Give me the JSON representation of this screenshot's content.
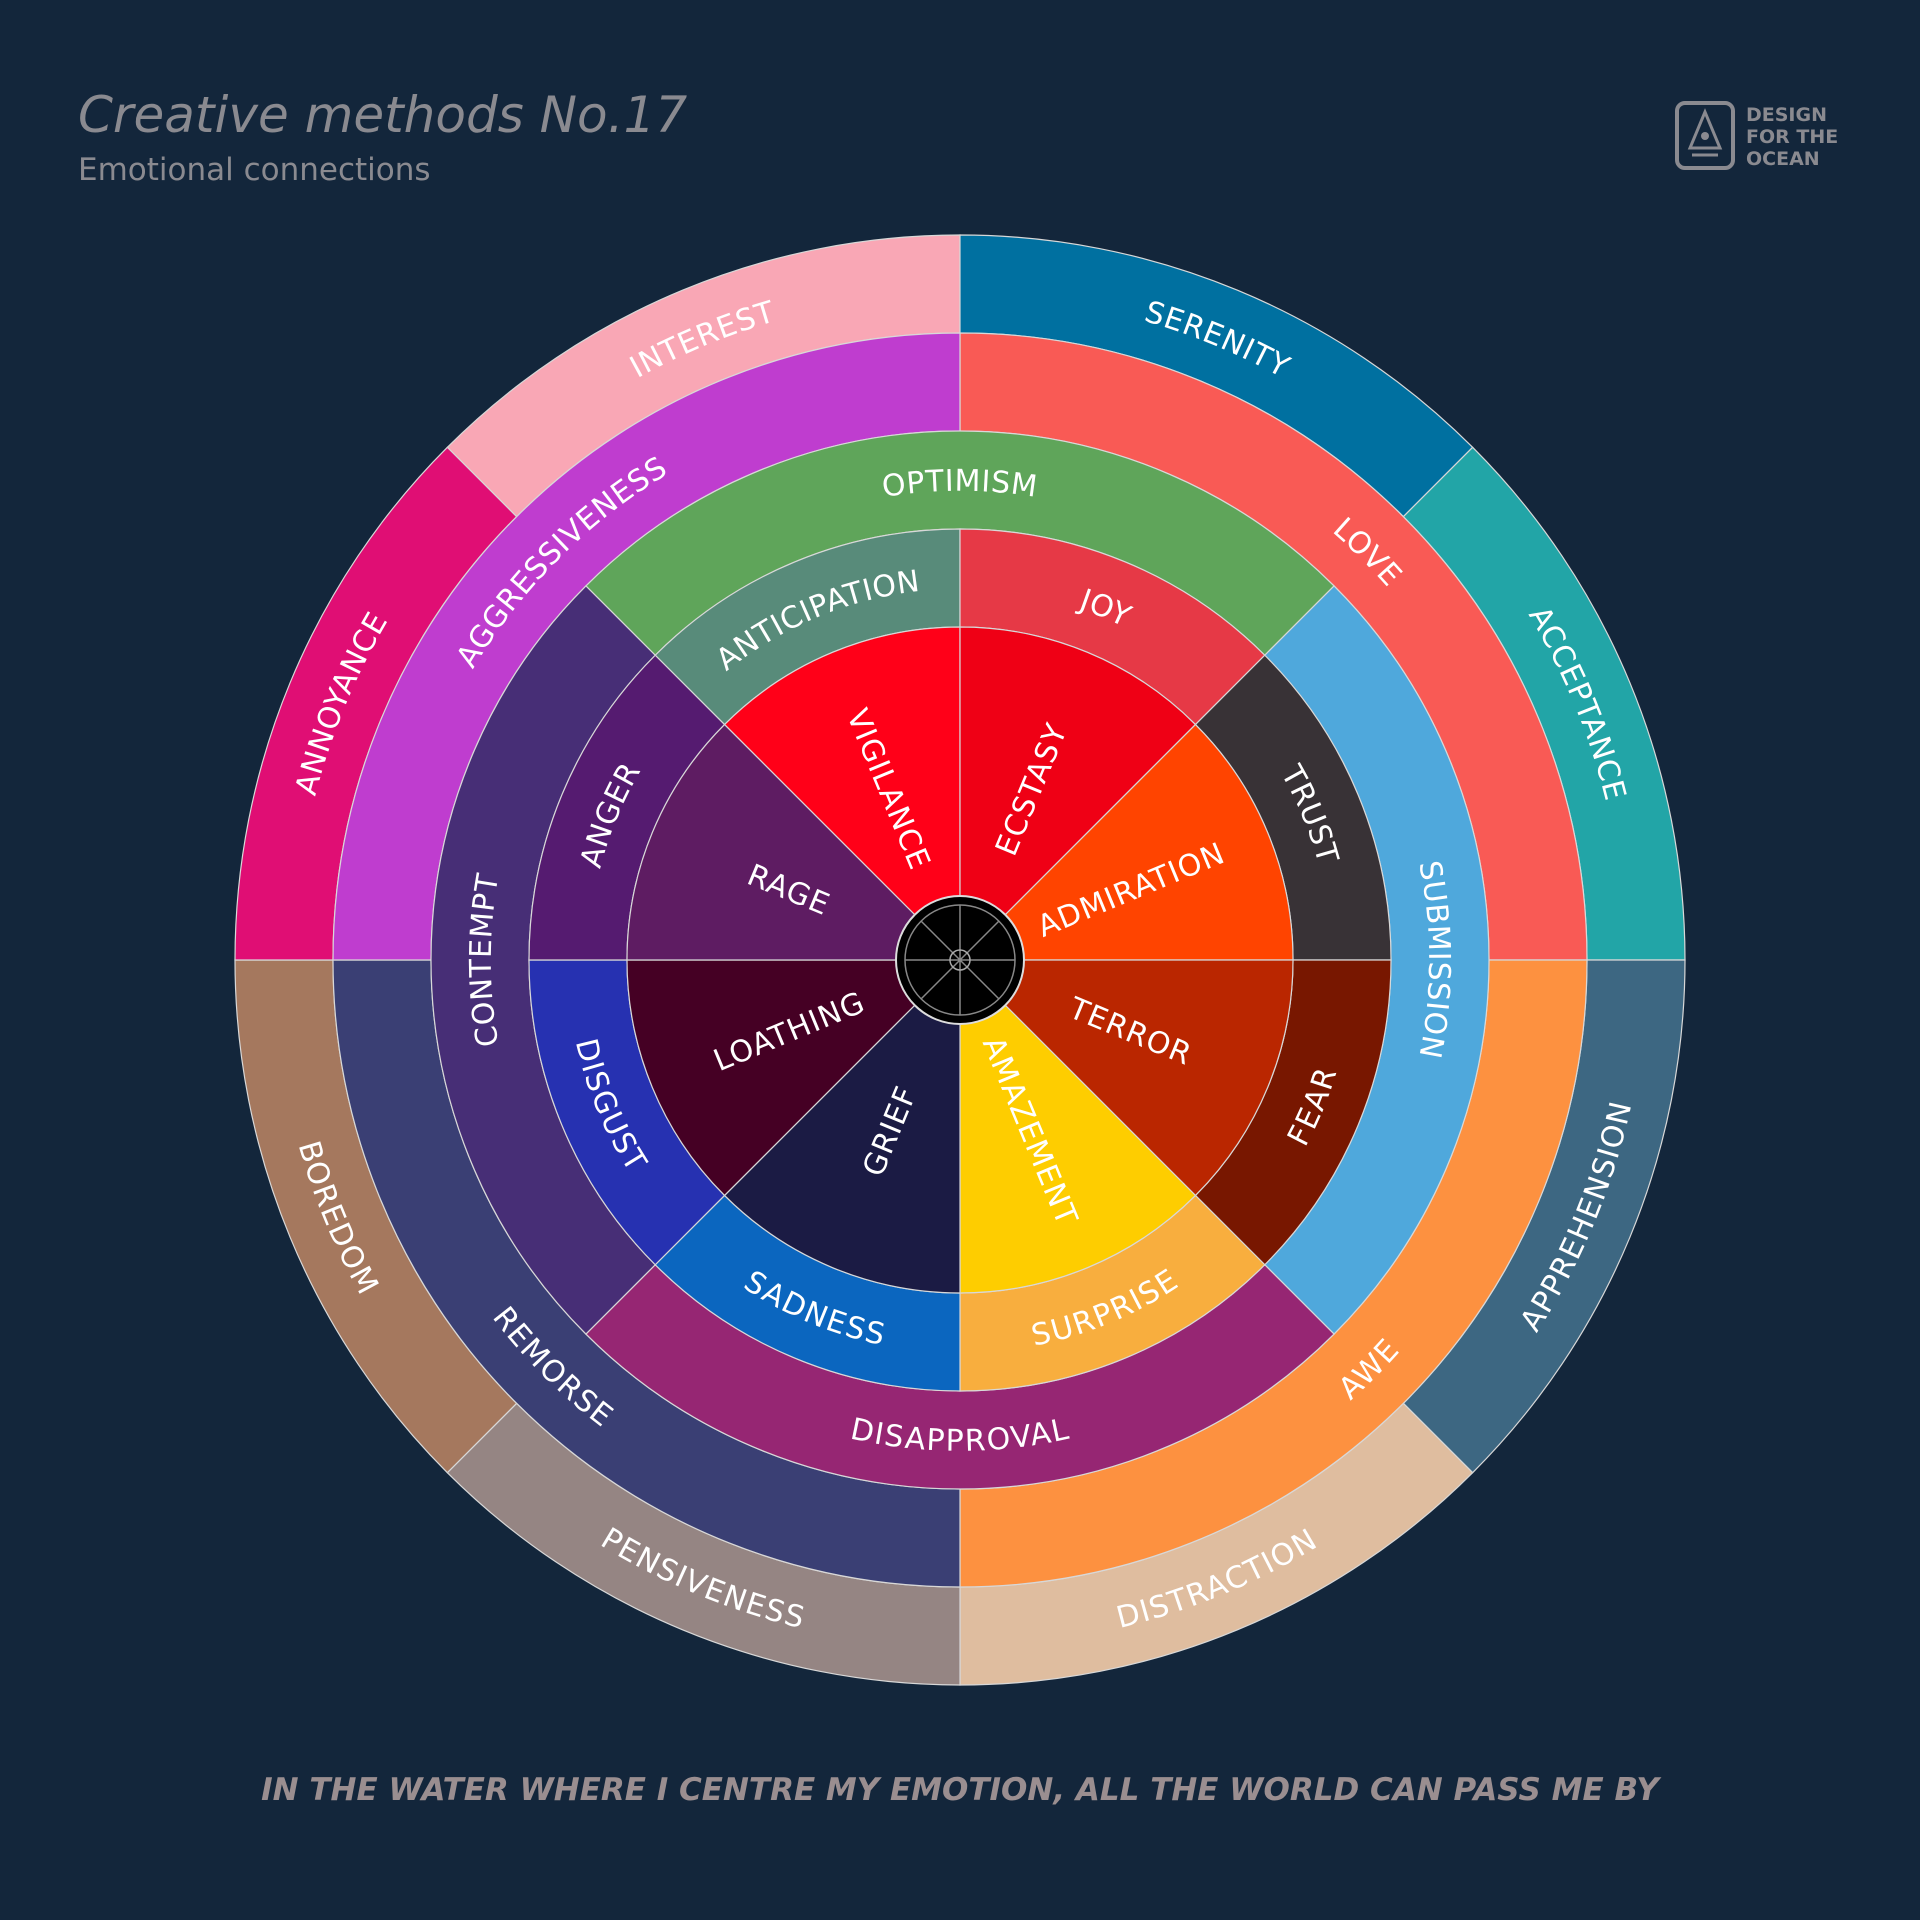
{
  "header": {
    "title": "Creative methods No.17",
    "subtitle": "Emotional connections"
  },
  "logo": {
    "lines": [
      "DESIGN",
      "FOR THE",
      "OCEAN"
    ]
  },
  "rings": [
    {
      "segments": [
        {
          "label": "INTEREST",
          "color": "#f9a7b5"
        },
        {
          "label": "SERENITY",
          "color": "#0070a0"
        },
        {
          "label": "ACCEPTANCE",
          "color": "#22a5a7"
        },
        {
          "label": "APPREHENSION",
          "color": "#3d6782"
        },
        {
          "label": "DISTRACTION",
          "color": "#dfbd9f"
        },
        {
          "label": "PENSIVENESS",
          "color": "#958583"
        },
        {
          "label": "BOREDOM",
          "color": "#a5785e"
        },
        {
          "label": "ANNOYANCE",
          "color": "#e00e74"
        }
      ]
    },
    {
      "segments": [
        {
          "label": "LOVE",
          "color": "#f95a55"
        },
        {
          "label": "AWE",
          "color": "#fd9140"
        },
        {
          "label": "REMORSE",
          "color": "#3a3f74"
        },
        {
          "label": "AGGRESSIVENESS",
          "color": "#bf3dcf"
        }
      ]
    },
    {
      "segments": [
        {
          "label": "OPTIMISM",
          "color": "#5fa55a"
        },
        {
          "label": "SUBMISSION",
          "color": "#4fa8dc"
        },
        {
          "label": "DISAPPROVAL",
          "color": "#962673"
        },
        {
          "label": "CONTEMPT",
          "color": "#472e76"
        }
      ]
    },
    {
      "segments": [
        {
          "label": "ANTICIPATION",
          "color": "#588b7a"
        },
        {
          "label": "JOY",
          "color": "#e63946"
        },
        {
          "label": "TRUST",
          "color": "#383236"
        },
        {
          "label": "FEAR",
          "color": "#781700"
        },
        {
          "label": "SURPRISE",
          "color": "#f8ae3e"
        },
        {
          "label": "SADNESS",
          "color": "#0b66bf"
        },
        {
          "label": "DISGUST",
          "color": "#2631b1"
        },
        {
          "label": "ANGER",
          "color": "#551b70"
        }
      ]
    },
    {
      "segments": [
        {
          "label": "VIGILANCE",
          "color": "#ff0018"
        },
        {
          "label": "ECSTASY",
          "color": "#ef0015"
        },
        {
          "label": "ADMIRATION",
          "color": "#ff4400"
        },
        {
          "label": "TERROR",
          "color": "#ba2600"
        },
        {
          "label": "AMAZEMENT",
          "color": "#fecd00"
        },
        {
          "label": "GRIEF",
          "color": "#1b1b44"
        },
        {
          "label": "LOATHING",
          "color": "#450024"
        },
        {
          "label": "RAGE",
          "color": "#5e1c62"
        }
      ]
    }
  ],
  "footer": "IN THE WATER WHERE I CENTRE MY EMOTION, ALL THE WORLD CAN PASS ME BY"
}
